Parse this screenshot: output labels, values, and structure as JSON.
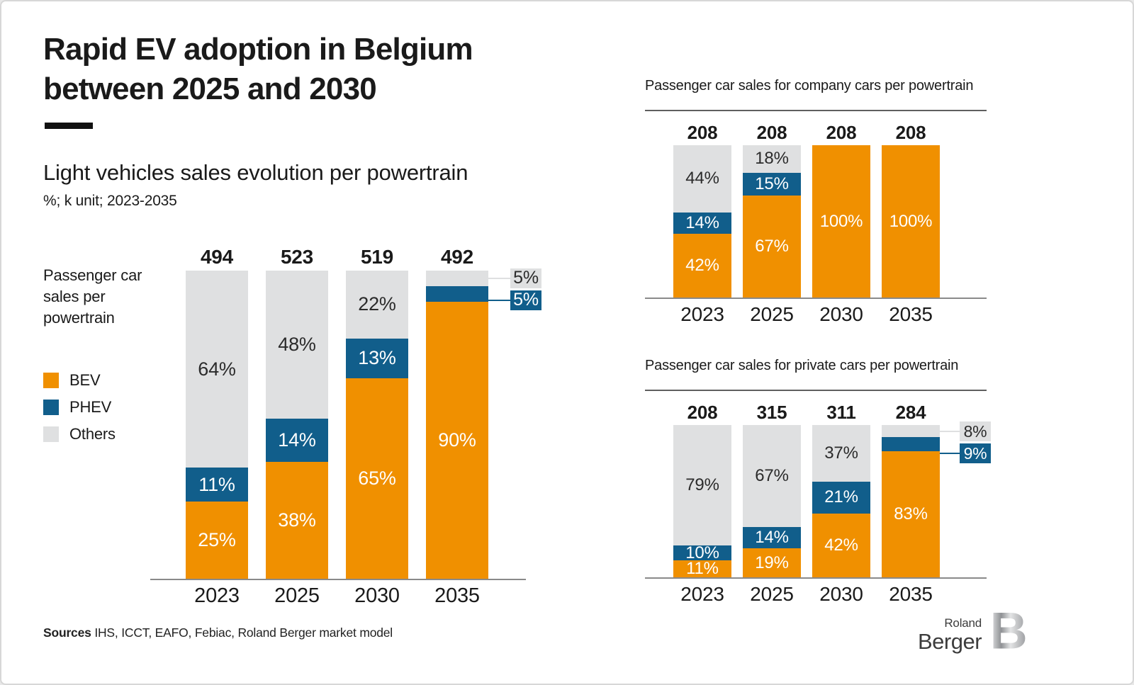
{
  "header": {
    "title_line1": "Rapid EV adoption in Belgium",
    "title_line2": "between 2025 and 2030",
    "subtitle": "Light vehicles sales evolution per powertrain",
    "unit_note": "%; k unit; 2023-2035"
  },
  "left_chart_label": "Passenger car\nsales per\npowertrain",
  "colors": {
    "bev": "#F09000",
    "phev": "#115E8B",
    "others": "#DFE0E1",
    "axis": "#8a8a8a"
  },
  "chart_data": [
    {
      "type": "bar",
      "stacked": true,
      "normalized_percent": true,
      "title": "Passenger car sales per powertrain",
      "categories": [
        "2023",
        "2025",
        "2030",
        "2035"
      ],
      "totals": [
        "494",
        "523",
        "519",
        "492"
      ],
      "unit": "%; k unit",
      "series": [
        {
          "name": "BEV",
          "color": "#F09000",
          "label_color": "#ffffff",
          "values": [
            25,
            38,
            65,
            90
          ]
        },
        {
          "name": "PHEV",
          "color": "#115E8B",
          "label_color": "#ffffff",
          "values": [
            11,
            14,
            13,
            5
          ]
        },
        {
          "name": "Others",
          "color": "#DFE0E1",
          "label_color": "#2b2b2b",
          "values": [
            64,
            48,
            22,
            5
          ]
        }
      ],
      "callouts": [
        {
          "col": 3,
          "series": "Others",
          "label": "5%"
        },
        {
          "col": 3,
          "series": "PHEV",
          "label": "5%"
        }
      ]
    },
    {
      "type": "bar",
      "stacked": true,
      "normalized_percent": true,
      "title": "Passenger car sales for company cars per powertrain",
      "categories": [
        "2023",
        "2025",
        "2030",
        "2035"
      ],
      "totals": [
        "208",
        "208",
        "208",
        "208"
      ],
      "unit": "%; k unit",
      "series": [
        {
          "name": "BEV",
          "color": "#F09000",
          "label_color": "#ffffff",
          "values": [
            42,
            67,
            100,
            100
          ]
        },
        {
          "name": "PHEV",
          "color": "#115E8B",
          "label_color": "#ffffff",
          "values": [
            14,
            15,
            0,
            0
          ]
        },
        {
          "name": "Others",
          "color": "#DFE0E1",
          "label_color": "#2b2b2b",
          "values": [
            44,
            18,
            0,
            0
          ]
        }
      ],
      "callouts": []
    },
    {
      "type": "bar",
      "stacked": true,
      "normalized_percent": true,
      "title": "Passenger car sales for private cars per powertrain",
      "categories": [
        "2023",
        "2025",
        "2030",
        "2035"
      ],
      "totals": [
        "208",
        "315",
        "311",
        "284"
      ],
      "unit": "%; k unit",
      "series": [
        {
          "name": "BEV",
          "color": "#F09000",
          "label_color": "#ffffff",
          "values": [
            11,
            19,
            42,
            83
          ]
        },
        {
          "name": "PHEV",
          "color": "#115E8B",
          "label_color": "#ffffff",
          "values": [
            10,
            14,
            21,
            9
          ]
        },
        {
          "name": "Others",
          "color": "#DFE0E1",
          "label_color": "#2b2b2b",
          "values": [
            79,
            67,
            37,
            8
          ]
        }
      ],
      "callouts": [
        {
          "col": 3,
          "series": "Others",
          "label": "8%"
        },
        {
          "col": 3,
          "series": "PHEV",
          "label": "9%"
        }
      ]
    }
  ],
  "footer": {
    "sources_label": "Sources",
    "sources_text": " IHS, ICCT, EAFO, Febiac, Roland Berger market model",
    "logo_top": "Roland",
    "logo_bottom": "Berger",
    "logo_letter": "B"
  }
}
